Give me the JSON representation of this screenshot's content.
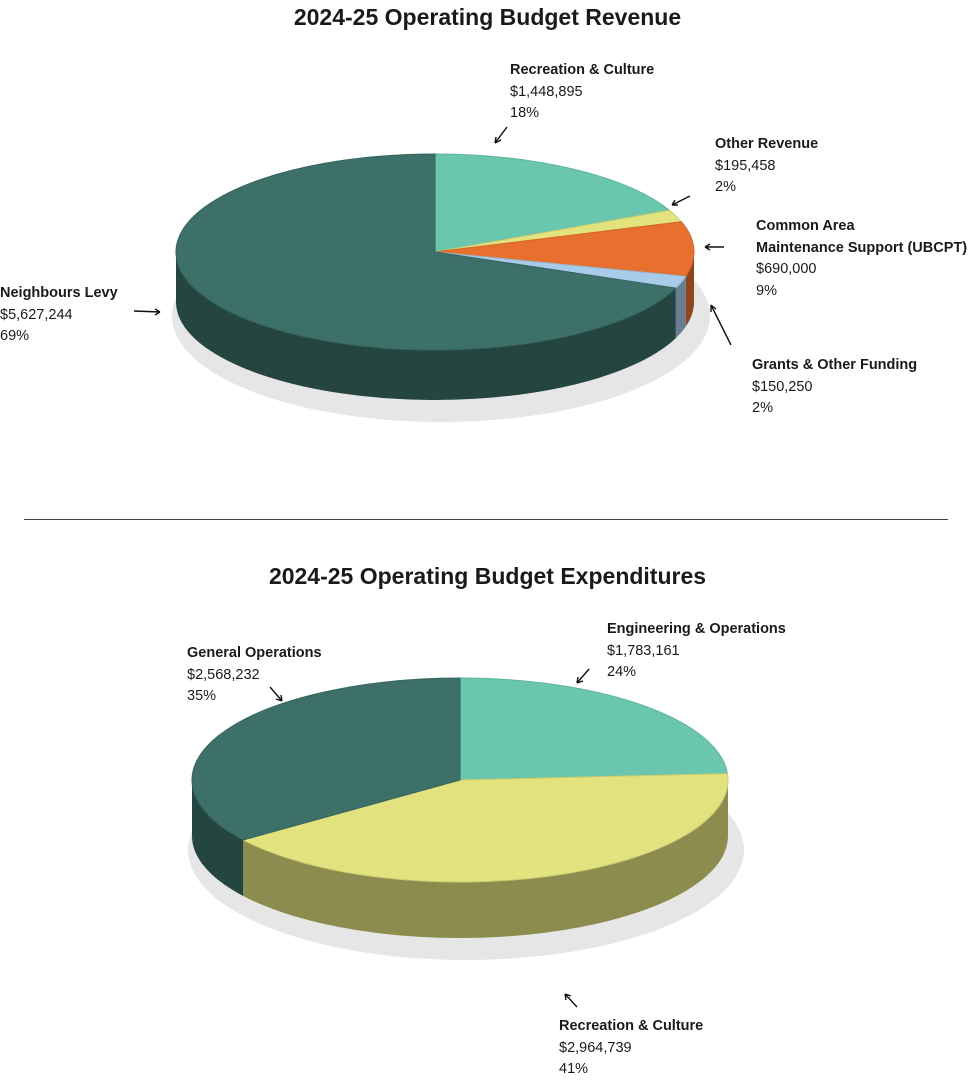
{
  "chart_data": [
    {
      "type": "pie",
      "style": "3d",
      "title": "2024-25 Operating Budget Revenue",
      "slices": [
        {
          "name": "Recreation & Culture",
          "value": 1448895,
          "value_label": "$1,448,895",
          "percent": 18,
          "percent_label": "18%",
          "color": "#6ac7ae"
        },
        {
          "name": "Other Revenue",
          "value": 195458,
          "value_label": "$195,458",
          "percent": 2,
          "percent_label": "2%",
          "color": "#e3e37d"
        },
        {
          "name_lines": [
            "Common Area",
            "Maintenance Support (UBCPT)"
          ],
          "name": "Common Area Maintenance Support (UBCPT)",
          "value": 690000,
          "value_label": "$690,000",
          "percent": 9,
          "percent_label": "9%",
          "color": "#e8702f"
        },
        {
          "name": "Grants & Other Funding",
          "value": 150250,
          "value_label": "$150,250",
          "percent": 2,
          "percent_label": "2%",
          "color": "#a7cbe8"
        },
        {
          "name": "Neighbours Levy",
          "value": 5627244,
          "value_label": "$5,627,244",
          "percent": 69,
          "percent_label": "69%",
          "color": "#3c7068"
        }
      ]
    },
    {
      "type": "pie",
      "style": "3d",
      "title": "2024-25 Operating Budget Expenditures",
      "slices": [
        {
          "name": "Engineering & Operations",
          "value": 1783161,
          "value_label": "$1,783,161",
          "percent": 24,
          "percent_label": "24%",
          "color": "#6ac7ae"
        },
        {
          "name": "Recreation & Culture",
          "value": 2964739,
          "value_label": "$2,964,739",
          "percent": 41,
          "percent_label": "41%",
          "color": "#e2e27e"
        },
        {
          "name": "General Operations",
          "value": 2568232,
          "value_label": "$2,568,232",
          "percent": 35,
          "percent_label": "35%",
          "color": "#3c7068"
        }
      ]
    }
  ]
}
